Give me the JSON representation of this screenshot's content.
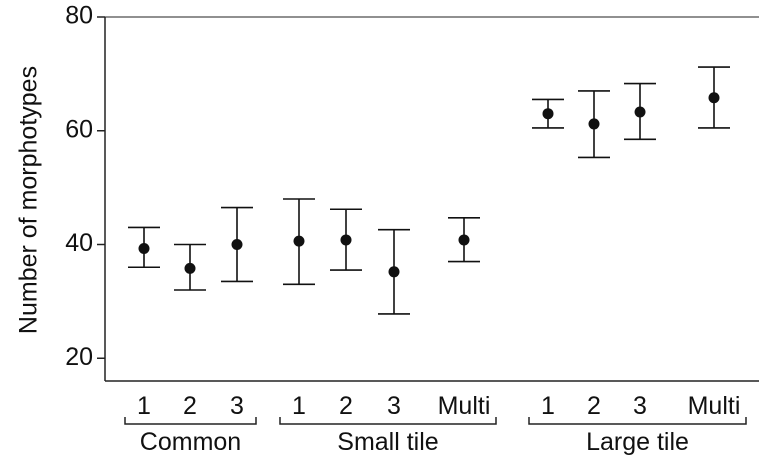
{
  "chart_data": {
    "type": "scatter",
    "title": "",
    "xlabel": "",
    "ylabel": "Number of morphotypes",
    "ylim": [
      16,
      80
    ],
    "yticks": [
      20,
      40,
      60,
      80
    ],
    "grid": false,
    "categories": [
      "1",
      "2",
      "3",
      "1",
      "2",
      "3",
      "Multi",
      "1",
      "2",
      "3",
      "Multi"
    ],
    "groups": [
      {
        "label": "Common",
        "categories": [
          "1",
          "2",
          "3"
        ]
      },
      {
        "label": "Small tile",
        "categories": [
          "1",
          "2",
          "3",
          "Multi"
        ]
      },
      {
        "label": "Large tile",
        "categories": [
          "1",
          "2",
          "3",
          "Multi"
        ]
      }
    ],
    "values": [
      39.3,
      35.8,
      40.0,
      40.6,
      40.8,
      35.2,
      40.8,
      63.0,
      61.2,
      63.3,
      65.8
    ],
    "lower": [
      36.0,
      32.0,
      33.5,
      33.0,
      35.5,
      27.8,
      37.0,
      60.5,
      55.3,
      58.5,
      60.5
    ],
    "upper": [
      43.0,
      40.0,
      46.5,
      48.0,
      46.2,
      42.6,
      44.7,
      65.5,
      67.0,
      68.3,
      71.2
    ],
    "colors": {
      "marker": "#111111",
      "axis": "#222222"
    }
  }
}
